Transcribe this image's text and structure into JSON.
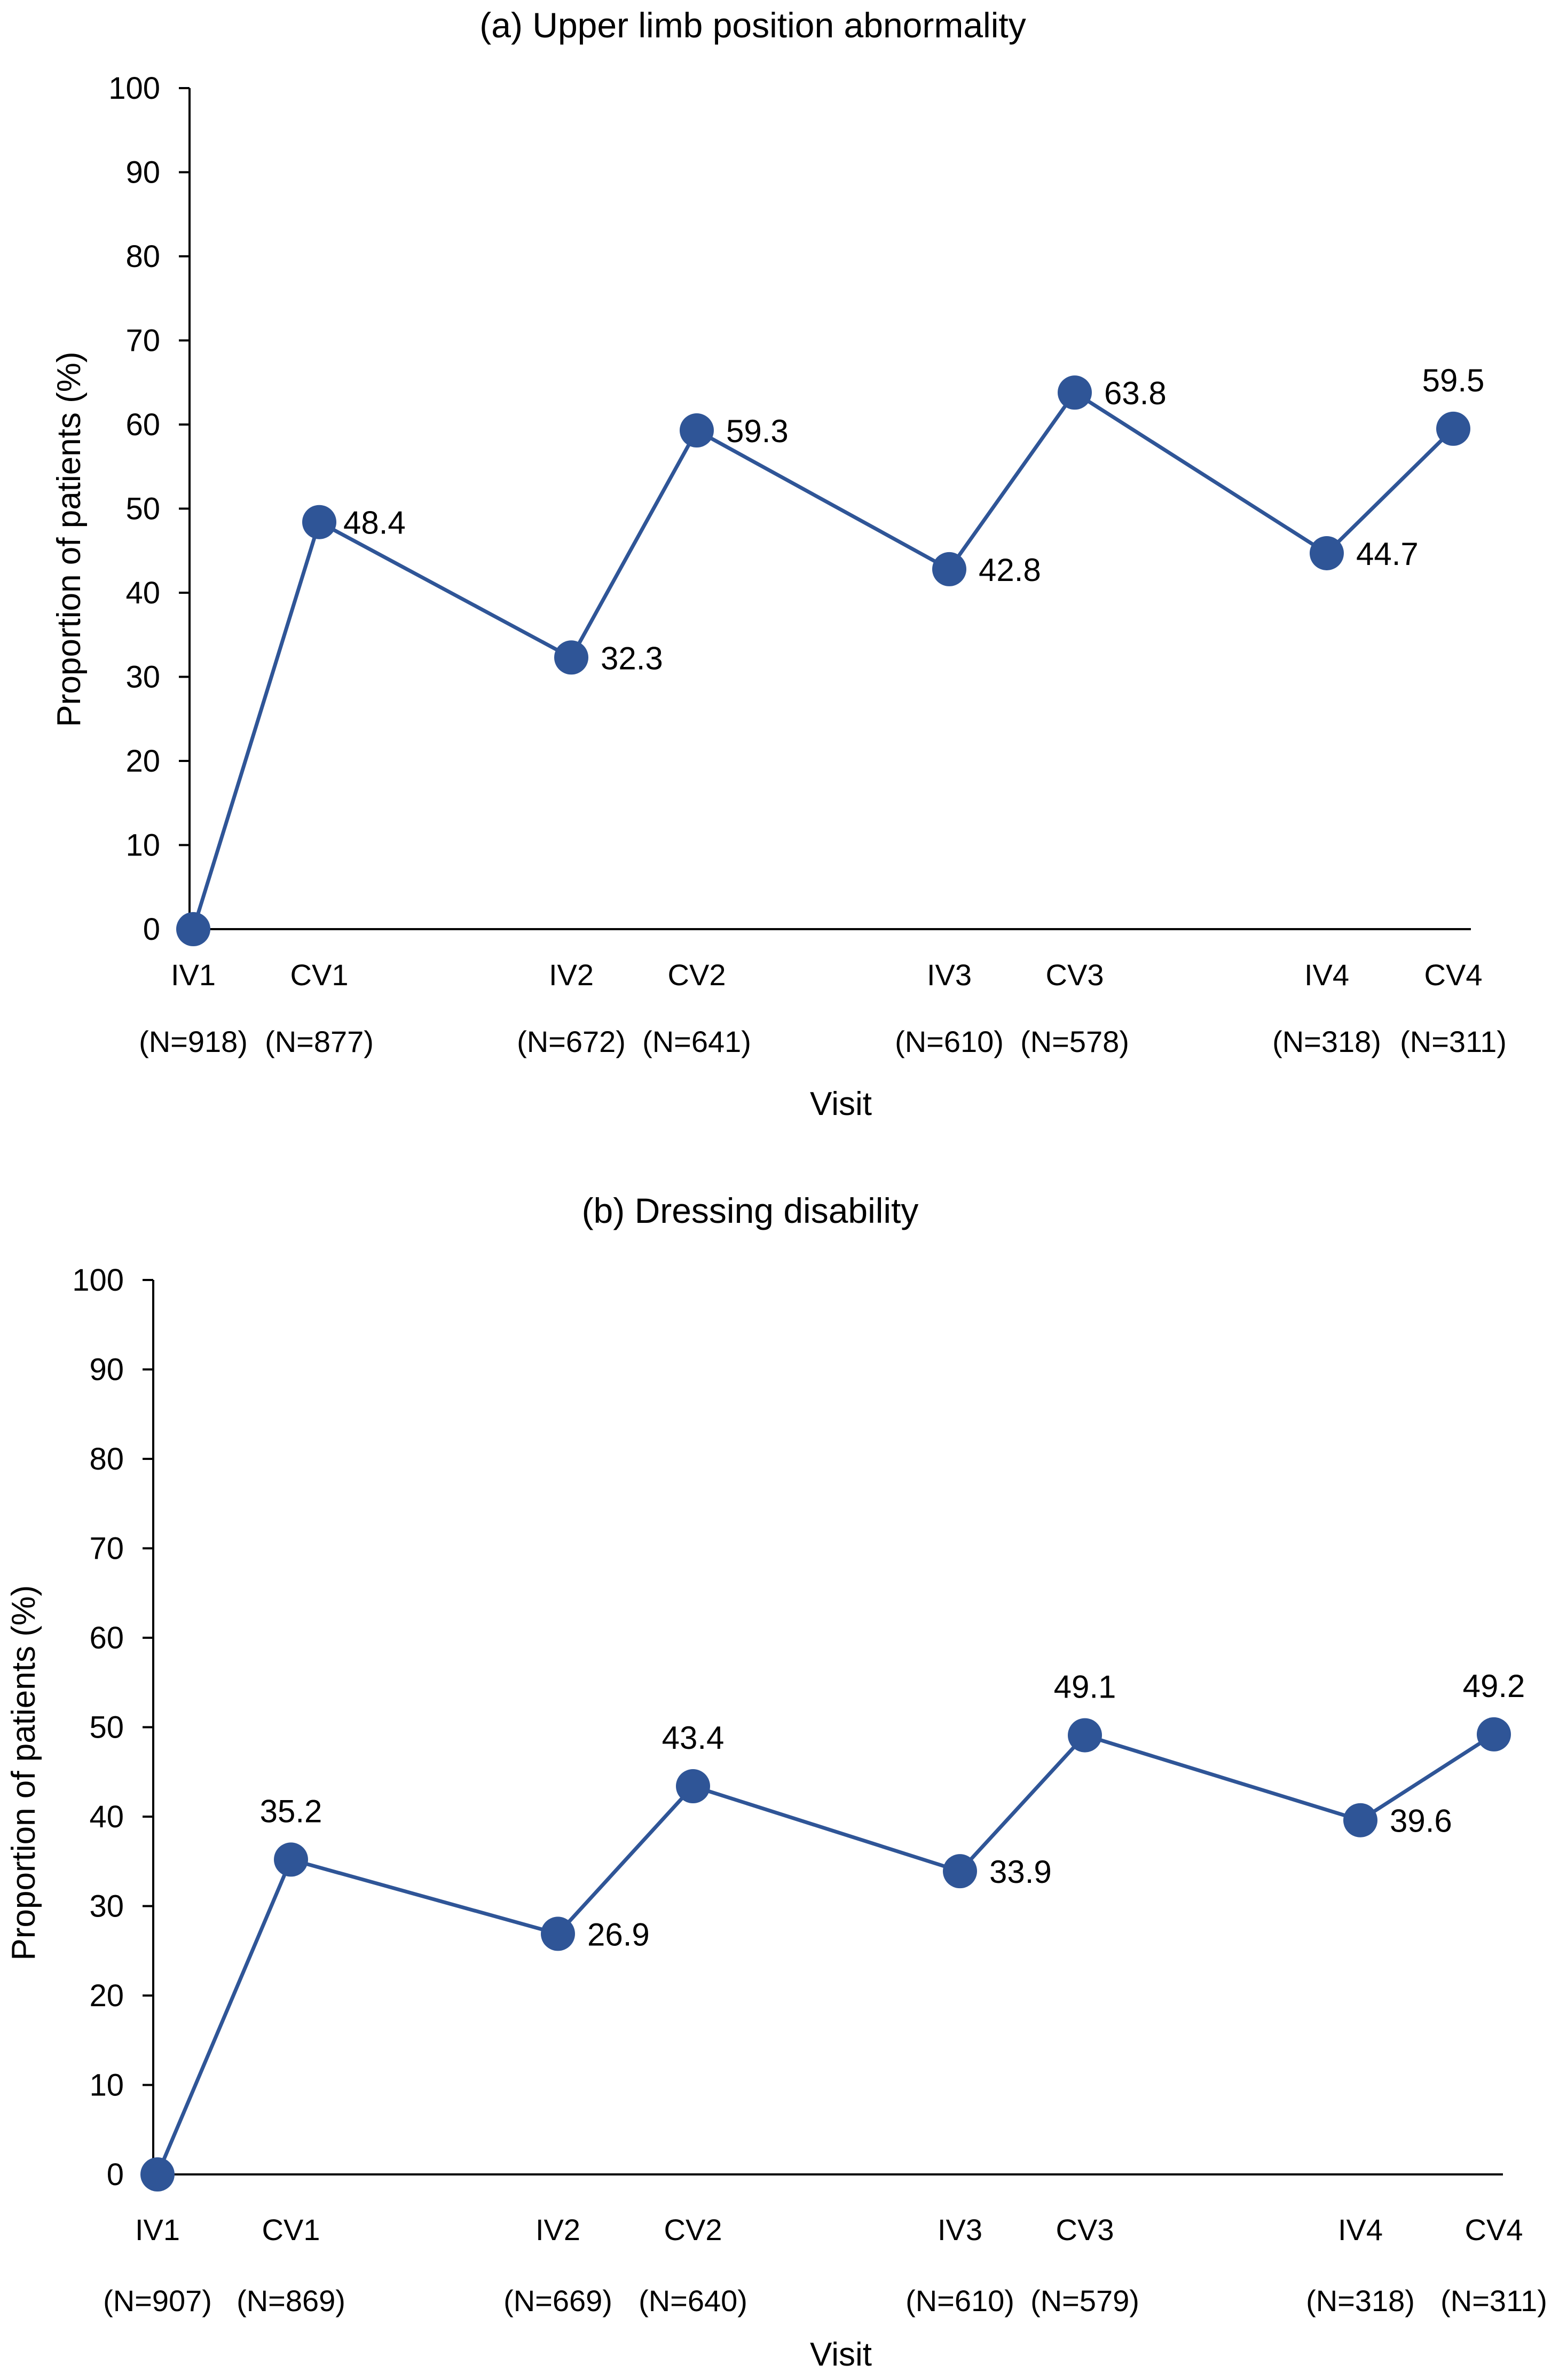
{
  "chart_data": [
    {
      "type": "line",
      "title": "(a) Upper limb position abnormality",
      "xlabel": "Visit",
      "ylabel": "Proportion of patients (%)",
      "ylim": [
        0,
        100
      ],
      "yticks": [
        0,
        10,
        20,
        30,
        40,
        50,
        60,
        70,
        80,
        90,
        100
      ],
      "grid": false,
      "legend": "none",
      "color": "#2F5597",
      "categories": [
        "IV1",
        "CV1",
        "IV2",
        "CV2",
        "IV3",
        "CV3",
        "IV4",
        "CV4"
      ],
      "n_labels": [
        "(N=918)",
        "(N=877)",
        "(N=672)",
        "(N=641)",
        "(N=610)",
        "(N=578)",
        "(N=318)",
        "(N=311)"
      ],
      "values": [
        0,
        48.4,
        32.3,
        59.3,
        42.8,
        63.8,
        44.7,
        59.5
      ],
      "data_labels": [
        "",
        "48.4",
        "32.3",
        "59.3",
        "42.8",
        "63.8",
        "44.7",
        "59.5"
      ]
    },
    {
      "type": "line",
      "title": "(b) Dressing disability",
      "xlabel": "Visit",
      "ylabel": "Proportion of patients (%)",
      "ylim": [
        0,
        100
      ],
      "yticks": [
        0,
        10,
        20,
        30,
        40,
        50,
        60,
        70,
        80,
        90,
        100
      ],
      "grid": false,
      "legend": "none",
      "color": "#2F5597",
      "categories": [
        "IV1",
        "CV1",
        "IV2",
        "CV2",
        "IV3",
        "CV3",
        "IV4",
        "CV4"
      ],
      "n_labels": [
        "(N=907)",
        "(N=869)",
        "(N=669)",
        "(N=640)",
        "(N=610)",
        "(N=579)",
        "(N=318)",
        "(N=311)"
      ],
      "values": [
        0,
        35.2,
        26.9,
        43.4,
        33.9,
        49.1,
        39.6,
        49.2
      ],
      "data_labels": [
        "",
        "35.2",
        "26.9",
        "43.4",
        "33.9",
        "49.1",
        "39.6",
        "49.2"
      ]
    }
  ]
}
